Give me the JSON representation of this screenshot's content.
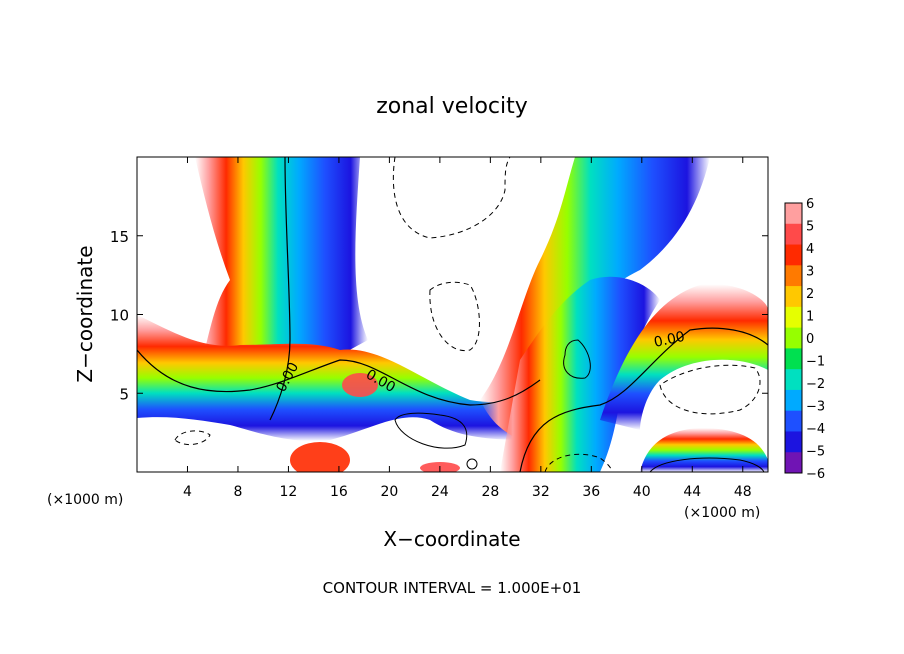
{
  "chart_data": {
    "type": "heatmap",
    "title": "zonal velocity",
    "xlabel": "X−coordinate",
    "ylabel": "Z−coordinate",
    "x_unit_left": "(×1000 m)",
    "x_unit_right": "(×1000 m)",
    "footer": "CONTOUR INTERVAL = 1.000E+01",
    "xlim": [
      0,
      50
    ],
    "ylim": [
      0,
      20
    ],
    "x_ticks": [
      4,
      8,
      12,
      16,
      20,
      24,
      28,
      32,
      36,
      40,
      44,
      48
    ],
    "y_ticks": [
      5,
      10,
      15
    ],
    "contour_label": "0.00",
    "colorbar": {
      "ticks": [
        6,
        5,
        4,
        3,
        2,
        1,
        0,
        -1,
        -2,
        -3,
        -4,
        -5,
        -6
      ],
      "colors": [
        "#ff9f9f",
        "#ff4a4a",
        "#ff2a00",
        "#ff7a00",
        "#ffc800",
        "#e6ff00",
        "#96ff00",
        "#00e050",
        "#00e0c0",
        "#00aaff",
        "#1e50ff",
        "#1c14e0",
        "#7014b4"
      ]
    },
    "colors": {
      "frame": "#000000",
      "background": "#ffffff"
    }
  }
}
